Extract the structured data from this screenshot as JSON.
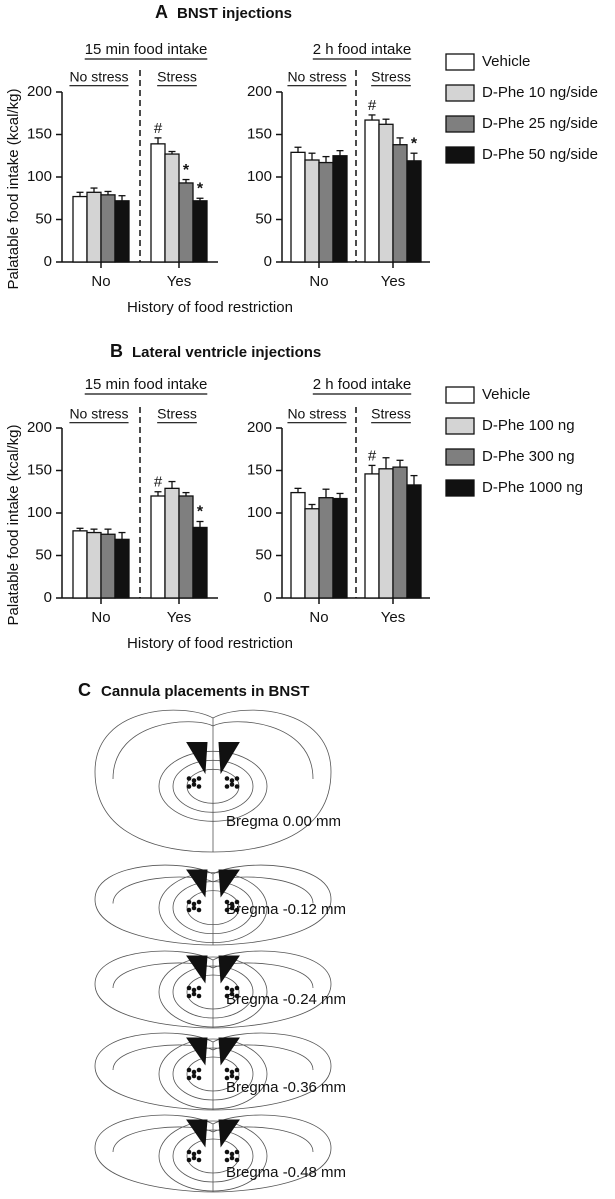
{
  "panels": [
    {
      "label": "A",
      "title": "BNST injections"
    },
    {
      "label": "B",
      "title": "Lateral ventricle injections"
    },
    {
      "label": "C",
      "title": "Cannula placements in BNST",
      "sections": [
        "Bregma 0.00 mm",
        "Bregma -0.12 mm",
        "Bregma -0.24 mm",
        "Bregma -0.36 mm",
        "Bregma -0.48 mm"
      ]
    }
  ],
  "chart_data": [
    {
      "type": "bar",
      "title": "15 min food intake",
      "group_labels": [
        "No stress",
        "Stress"
      ],
      "ylabel": "Palatable food intake (kcal/kg)",
      "xlabel": "History of food restriction",
      "categories": [
        "No",
        "Yes"
      ],
      "ylim": [
        0,
        200
      ],
      "yticks": [
        0,
        50,
        100,
        150,
        200
      ],
      "series": [
        {
          "name": "Vehicle",
          "color": "#ffffff",
          "values": [
            77,
            139
          ],
          "errors": [
            5,
            7
          ],
          "markers": [
            null,
            "#"
          ]
        },
        {
          "name": "D-Phe 10 ng/side",
          "color": "#d4d4d4",
          "values": [
            82,
            127
          ],
          "errors": [
            5,
            3
          ],
          "markers": [
            null,
            null
          ]
        },
        {
          "name": "D-Phe 25 ng/side",
          "color": "#7f7f7f",
          "values": [
            79,
            93
          ],
          "errors": [
            4,
            4
          ],
          "markers": [
            null,
            "*"
          ]
        },
        {
          "name": "D-Phe 50 ng/side",
          "color": "#111111",
          "values": [
            72,
            72
          ],
          "errors": [
            6,
            3
          ],
          "markers": [
            null,
            "*"
          ]
        }
      ]
    },
    {
      "type": "bar",
      "title": "2 h food intake",
      "group_labels": [
        "No stress",
        "Stress"
      ],
      "categories": [
        "No",
        "Yes"
      ],
      "ylim": [
        0,
        200
      ],
      "yticks": [
        0,
        50,
        100,
        150,
        200
      ],
      "series": [
        {
          "color": "#ffffff",
          "values": [
            129,
            167
          ],
          "errors": [
            6,
            6
          ],
          "markers": [
            null,
            "#"
          ]
        },
        {
          "color": "#d4d4d4",
          "values": [
            120,
            162
          ],
          "errors": [
            8,
            6
          ],
          "markers": [
            null,
            null
          ]
        },
        {
          "color": "#7f7f7f",
          "values": [
            117,
            138
          ],
          "errors": [
            7,
            8
          ],
          "markers": [
            null,
            null
          ]
        },
        {
          "color": "#111111",
          "values": [
            125,
            119
          ],
          "errors": [
            6,
            9
          ],
          "markers": [
            null,
            "*"
          ]
        }
      ]
    },
    {
      "type": "bar",
      "title": "15 min food intake",
      "group_labels": [
        "No stress",
        "Stress"
      ],
      "ylabel": "Palatable food intake (kcal/kg)",
      "xlabel": "History of food restriction",
      "categories": [
        "No",
        "Yes"
      ],
      "ylim": [
        0,
        200
      ],
      "yticks": [
        0,
        50,
        100,
        150,
        200
      ],
      "series": [
        {
          "name": "Vehicle",
          "color": "#ffffff",
          "values": [
            79,
            120
          ],
          "errors": [
            3,
            5
          ],
          "markers": [
            null,
            "#"
          ]
        },
        {
          "name": "D-Phe 100 ng",
          "color": "#d4d4d4",
          "values": [
            77,
            129
          ],
          "errors": [
            4,
            8
          ],
          "markers": [
            null,
            null
          ]
        },
        {
          "name": "D-Phe 300 ng",
          "color": "#7f7f7f",
          "values": [
            75,
            120
          ],
          "errors": [
            6,
            4
          ],
          "markers": [
            null,
            null
          ]
        },
        {
          "name": "D-Phe 1000 ng",
          "color": "#111111",
          "values": [
            69,
            83
          ],
          "errors": [
            8,
            7
          ],
          "markers": [
            null,
            "*"
          ]
        }
      ]
    },
    {
      "type": "bar",
      "title": "2 h food intake",
      "group_labels": [
        "No stress",
        "Stress"
      ],
      "categories": [
        "No",
        "Yes"
      ],
      "ylim": [
        0,
        200
      ],
      "yticks": [
        0,
        50,
        100,
        150,
        200
      ],
      "series": [
        {
          "color": "#ffffff",
          "values": [
            124,
            146
          ],
          "errors": [
            5,
            10
          ],
          "markers": [
            null,
            "#"
          ]
        },
        {
          "color": "#d4d4d4",
          "values": [
            105,
            152
          ],
          "errors": [
            5,
            13
          ],
          "markers": [
            null,
            null
          ]
        },
        {
          "color": "#7f7f7f",
          "values": [
            118,
            154
          ],
          "errors": [
            10,
            8
          ],
          "markers": [
            null,
            null
          ]
        },
        {
          "color": "#111111",
          "values": [
            117,
            133
          ],
          "errors": [
            6,
            11
          ],
          "markers": [
            null,
            null
          ]
        }
      ]
    }
  ]
}
